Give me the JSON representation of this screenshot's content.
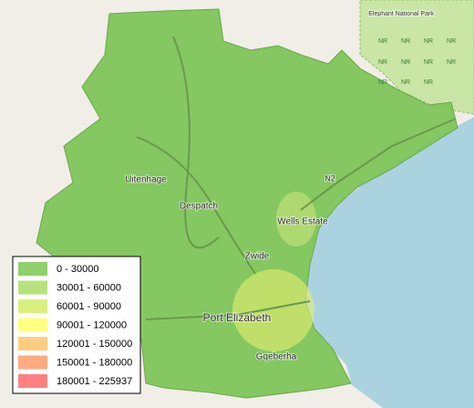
{
  "map": {
    "places": [
      {
        "label": "Uitenhage"
      },
      {
        "label": "Despatch"
      },
      {
        "label": "Wells Estate"
      },
      {
        "label": "Zwide"
      },
      {
        "label": "Port Elizabeth"
      },
      {
        "label": "Gqeberha"
      },
      {
        "label": "N2"
      },
      {
        "label": "Elephant National Park"
      }
    ],
    "reserve_label": "NR",
    "legend": [
      {
        "label": "0 - 30000",
        "color": "#8ed06a"
      },
      {
        "label": "30001 - 60000",
        "color": "#b6e27c"
      },
      {
        "label": "60001 - 90000",
        "color": "#d9f07f"
      },
      {
        "label": "90001 - 120000",
        "color": "#ffff80"
      },
      {
        "label": "120001 - 150000",
        "color": "#ffcd80"
      },
      {
        "label": "150001 - 180000",
        "color": "#ffaa80"
      },
      {
        "label": "180001 - 225937",
        "color": "#ff8080"
      }
    ]
  }
}
